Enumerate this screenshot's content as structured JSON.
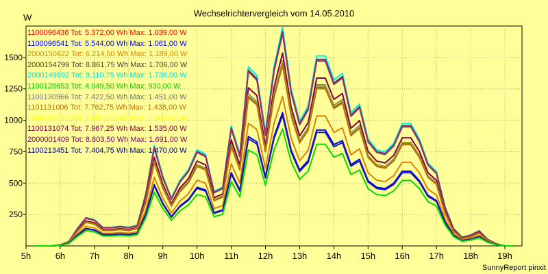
{
  "chart_data": {
    "type": "line",
    "title": "Wechselrichtervergleich vom 14.05.2010",
    "ylabel": "W",
    "xlabel": "",
    "footer": "SunnyReport pinxit",
    "ylim": [
      0,
      1750
    ],
    "xlim": [
      5,
      19.5
    ],
    "yticks": [
      250,
      500,
      750,
      1000,
      1250,
      1500
    ],
    "xticks": [
      5,
      6,
      7,
      8,
      9,
      10,
      11,
      12,
      13,
      14,
      15,
      16,
      17,
      18,
      19
    ],
    "xtick_labels": [
      "5h",
      "6h",
      "7h",
      "8h",
      "9h",
      "10h",
      "11h",
      "12h",
      "13h",
      "14h",
      "15h",
      "16h",
      "17h",
      "18h",
      "19h"
    ],
    "grid": true,
    "legend_position": "top-left",
    "x": [
      5.25,
      5.75,
      6.0,
      6.25,
      6.5,
      6.75,
      7.0,
      7.25,
      7.5,
      7.75,
      8.0,
      8.25,
      8.5,
      8.75,
      9.0,
      9.25,
      9.5,
      9.75,
      10.0,
      10.25,
      10.5,
      10.75,
      11.0,
      11.25,
      11.5,
      11.75,
      12.0,
      12.25,
      12.5,
      12.75,
      13.0,
      13.25,
      13.5,
      13.75,
      14.0,
      14.25,
      14.5,
      14.75,
      15.0,
      15.25,
      15.5,
      15.75,
      16.0,
      16.25,
      16.5,
      16.75,
      17.0,
      17.25,
      17.5,
      17.75,
      18.0,
      18.25,
      18.5,
      18.75,
      19.0,
      19.25
    ],
    "shape": [
      0,
      0,
      0.005,
      0.02,
      0.08,
      0.13,
      0.12,
      0.085,
      0.085,
      0.09,
      0.085,
      0.095,
      0.24,
      0.46,
      0.32,
      0.22,
      0.3,
      0.35,
      0.44,
      0.42,
      0.25,
      0.27,
      0.55,
      0.42,
      0.82,
      0.78,
      0.52,
      0.82,
      1.0,
      0.72,
      0.57,
      0.64,
      0.87,
      0.87,
      0.76,
      0.79,
      0.61,
      0.65,
      0.49,
      0.44,
      0.43,
      0.47,
      0.56,
      0.56,
      0.49,
      0.38,
      0.34,
      0.18,
      0.08,
      0.04,
      0.05,
      0.07,
      0.03,
      0.01,
      0,
      0
    ],
    "series": [
      {
        "name": "1100096436",
        "label": "1100096436 Tot: 5.372,00 Wh Max: 1.039,00 W",
        "total_wh": 5372.0,
        "max_w": 1039.0,
        "color": "#ff0000",
        "line_color": "#1a1aa0"
      },
      {
        "name": "1100096541",
        "label": "1100096541 Tot: 5.544,00 Wh Max: 1.061,00 W",
        "total_wh": 5544.0,
        "max_w": 1061.0,
        "color": "#0000ff",
        "line_color": "#0000ff"
      },
      {
        "name": "2000150622",
        "label": "2000150622 Tot: 6.214,50 Wh Max: 1.189,00 W",
        "total_wh": 6214.5,
        "max_w": 1189.0,
        "color": "#e08000",
        "line_color": "#e08000"
      },
      {
        "name": "2000154799",
        "label": "2000154799 Tot: 8.861,75 Wh Max: 1.706,00 W",
        "total_wh": 8861.75,
        "max_w": 1706.0,
        "color": "#404040",
        "line_color": "#404060"
      },
      {
        "name": "2000149892",
        "label": "2000149892 Tot: 9.110,75 Wh Max: 1.738,00 W",
        "total_wh": 9110.75,
        "max_w": 1738.0,
        "color": "#00e0e0",
        "line_color": "#00e8e8"
      },
      {
        "name": "1100128653",
        "label": "1100128653 Tot: 4.949,50 Wh Max: 930,00 W",
        "total_wh": 4949.5,
        "max_w": 930.0,
        "color": "#00c800",
        "line_color": "#00dd00"
      },
      {
        "name": "1100130966",
        "label": "1100130966 Tot: 7.422,50 Wh Max: 1.451,00 W",
        "total_wh": 7422.5,
        "max_w": 1451.0,
        "color": "#707070",
        "line_color": "#707070"
      },
      {
        "name": "1101131006",
        "label": "1101131006 Tot: 7.762,75 Wh Max: 1.438,00 W",
        "total_wh": 7762.75,
        "max_w": 1438.0,
        "color": "#c07000",
        "line_color": "#c07000"
      },
      {
        "name": "1100130253",
        "label": "1100130253 Tot: 7.652,00 Wh Max: 1.463,00 W",
        "total_wh": 7652.0,
        "max_w": 1463.0,
        "color": "#ffff00",
        "line_color": "#e8e800"
      },
      {
        "name": "1100131074",
        "label": "1100131074 Tot: 7.967,25 Wh Max: 1.535,00 W",
        "total_wh": 7967.25,
        "max_w": 1535.0,
        "color": "#800040",
        "line_color": "#800040"
      },
      {
        "name": "2000001409",
        "label": "2000001409 Tot: 8.803,50 Wh Max: 1.691,00 W",
        "total_wh": 8803.5,
        "max_w": 1691.0,
        "color": "#800060",
        "line_color": "#a03060"
      },
      {
        "name": "1100213451",
        "label": "1100213451 Tot: 7.404,75 Wh Max: 1.470,00 W",
        "total_wh": 7404.75,
        "max_w": 1470.0,
        "color": "#000080",
        "line_color": "#202070"
      }
    ]
  }
}
